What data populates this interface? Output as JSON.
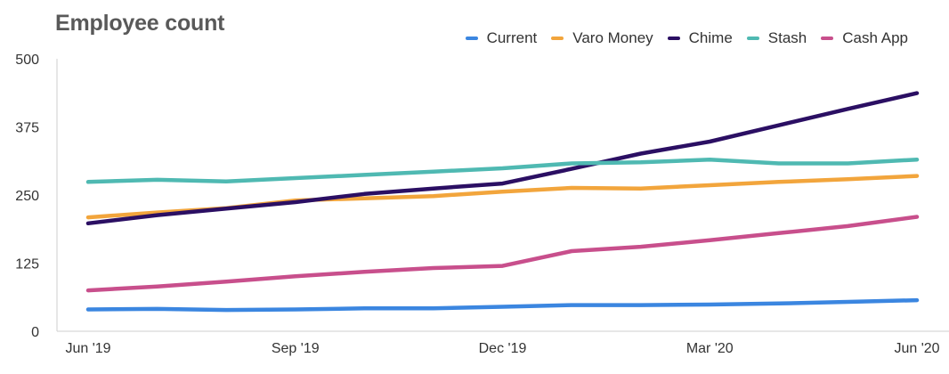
{
  "chart_data": {
    "type": "line",
    "title": "Employee count",
    "xlabel": "",
    "ylabel": "",
    "categories": [
      "Jun '19",
      "Jul '19",
      "Aug '19",
      "Sep '19",
      "Oct '19",
      "Nov '19",
      "Dec '19",
      "Jan '20",
      "Feb '20",
      "Mar '20",
      "Apr '20",
      "May '20",
      "Jun '20"
    ],
    "x_tick_labels": [
      "Jun '19",
      "Sep '19",
      "Dec '19",
      "Mar '20",
      "Jun '20"
    ],
    "y_ticks": [
      0,
      125,
      250,
      375,
      500
    ],
    "ylim": [
      0,
      500
    ],
    "grid": false,
    "legend_position": "top-right",
    "series": [
      {
        "name": "Current",
        "color": "#3b86e0",
        "values": [
          40,
          41,
          39,
          40,
          42,
          42,
          45,
          48,
          48,
          49,
          51,
          54,
          57
        ]
      },
      {
        "name": "Varo Money",
        "color": "#f2a53c",
        "values": [
          209,
          218,
          226,
          240,
          244,
          248,
          256,
          263,
          262,
          268,
          274,
          279,
          285
        ]
      },
      {
        "name": "Chime",
        "color": "#2b0f63",
        "values": [
          198,
          213,
          225,
          237,
          252,
          262,
          271,
          298,
          326,
          348,
          378,
          408,
          437
        ]
      },
      {
        "name": "Stash",
        "color": "#4fb9b2",
        "values": [
          274,
          278,
          275,
          281,
          287,
          293,
          299,
          308,
          310,
          315,
          308,
          308,
          315
        ]
      },
      {
        "name": "Cash App",
        "color": "#c84f8c",
        "values": [
          75,
          82,
          91,
          101,
          109,
          116,
          120,
          147,
          155,
          167,
          180,
          193,
          210
        ]
      }
    ]
  }
}
